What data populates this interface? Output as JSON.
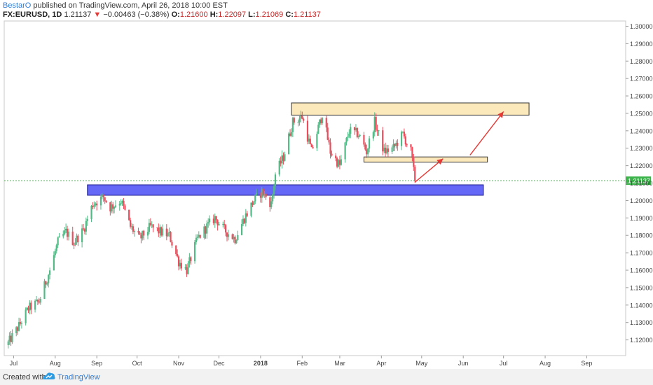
{
  "header": {
    "author": "BestarO",
    "published": "published on TradingView.com, April 26, 2018 10:00 EST",
    "symbol": "FX:EURUSD, 1D",
    "last": "1.21137",
    "change": "−0.00463 (−0.38%)",
    "o_label": "O:",
    "o_value": "1.21600",
    "h_label": "H:",
    "h_value": "1.22097",
    "l_label": "L:",
    "l_value": "1.21069",
    "c_label": "C:",
    "c_value": "1.21137"
  },
  "footer": {
    "created": "Created with",
    "brand": "TradingView"
  },
  "chart_data": {
    "type": "candlestick",
    "x_tick_labels": [
      "Jul",
      "Aug",
      "Sep",
      "Oct",
      "Nov",
      "Dec",
      "2018",
      "Feb",
      "Mar",
      "Apr",
      "May",
      "Jun",
      "Jul",
      "Aug",
      "Sep"
    ],
    "y_tick_labels": [
      "1.30000",
      "1.29000",
      "1.28000",
      "1.27000",
      "1.26000",
      "1.25000",
      "1.24000",
      "1.23000",
      "1.22000",
      "1.21000",
      "1.20000",
      "1.19000",
      "1.18000",
      "1.17000",
      "1.16000",
      "1.15000",
      "1.14000",
      "1.13000",
      "1.12000"
    ],
    "y_range": [
      1.111,
      1.303
    ],
    "current_price_label": "1.21137",
    "current_price": 1.21137,
    "colors": {
      "up": "#53b987",
      "down": "#eb4d5c",
      "blue_zone": "#4a4cf5",
      "yellow_zone": "#fbe9bb",
      "arrow": "#e53935",
      "price_line": "#4caf50"
    },
    "close_path": [
      [
        "2017-06-26",
        1.117
      ],
      [
        "2017-07-05",
        1.128
      ],
      [
        "2017-07-12",
        1.138
      ],
      [
        "2017-07-20",
        1.142
      ],
      [
        "2017-07-28",
        1.16
      ],
      [
        "2017-08-03",
        1.176
      ],
      [
        "2017-08-09",
        1.182
      ],
      [
        "2017-08-15",
        1.176
      ],
      [
        "2017-08-22",
        1.183
      ],
      [
        "2017-08-29",
        1.198
      ],
      [
        "2017-09-06",
        1.202
      ],
      [
        "2017-09-11",
        1.196
      ],
      [
        "2017-09-19",
        1.2
      ],
      [
        "2017-09-26",
        1.185
      ],
      [
        "2017-10-03",
        1.178
      ],
      [
        "2017-10-11",
        1.185
      ],
      [
        "2017-10-18",
        1.182
      ],
      [
        "2017-10-25",
        1.18
      ],
      [
        "2017-11-01",
        1.165
      ],
      [
        "2017-11-07",
        1.16
      ],
      [
        "2017-11-15",
        1.178
      ],
      [
        "2017-11-22",
        1.185
      ],
      [
        "2017-11-28",
        1.19
      ],
      [
        "2017-12-05",
        1.183
      ],
      [
        "2017-12-13",
        1.178
      ],
      [
        "2017-12-20",
        1.19
      ],
      [
        "2017-12-27",
        1.2
      ],
      [
        "2018-01-02",
        1.205
      ],
      [
        "2018-01-09",
        1.198
      ],
      [
        "2018-01-12",
        1.215
      ],
      [
        "2018-01-18",
        1.225
      ],
      [
        "2018-01-25",
        1.245
      ],
      [
        "2018-02-01",
        1.248
      ],
      [
        "2018-02-08",
        1.228
      ],
      [
        "2018-02-16",
        1.25
      ],
      [
        "2018-02-22",
        1.228
      ],
      [
        "2018-03-01",
        1.22
      ],
      [
        "2018-03-08",
        1.24
      ],
      [
        "2018-03-15",
        1.238
      ],
      [
        "2018-03-21",
        1.228
      ],
      [
        "2018-03-27",
        1.245
      ],
      [
        "2018-04-03",
        1.228
      ],
      [
        "2018-04-10",
        1.23
      ],
      [
        "2018-04-17",
        1.238
      ],
      [
        "2018-04-23",
        1.228
      ],
      [
        "2018-04-26",
        1.211
      ]
    ],
    "zones": [
      {
        "kind": "blue",
        "x_from": "2017-08-25",
        "x_to": "2018-06-16",
        "y_from": 1.203,
        "y_to": 1.209
      },
      {
        "kind": "yellow",
        "x_from": "2018-01-24",
        "x_to": "2018-07-20",
        "y_from": 1.249,
        "y_to": 1.256
      },
      {
        "kind": "yellow",
        "x_from": "2018-03-19",
        "x_to": "2018-06-19",
        "y_from": 1.222,
        "y_to": 1.225
      }
    ],
    "arrows": [
      {
        "from": [
          "2018-04-26",
          1.2105
        ],
        "to": [
          "2018-05-17",
          1.224
        ]
      },
      {
        "from": [
          "2018-06-06",
          1.226
        ],
        "to": [
          "2018-07-01",
          1.251
        ]
      }
    ]
  }
}
